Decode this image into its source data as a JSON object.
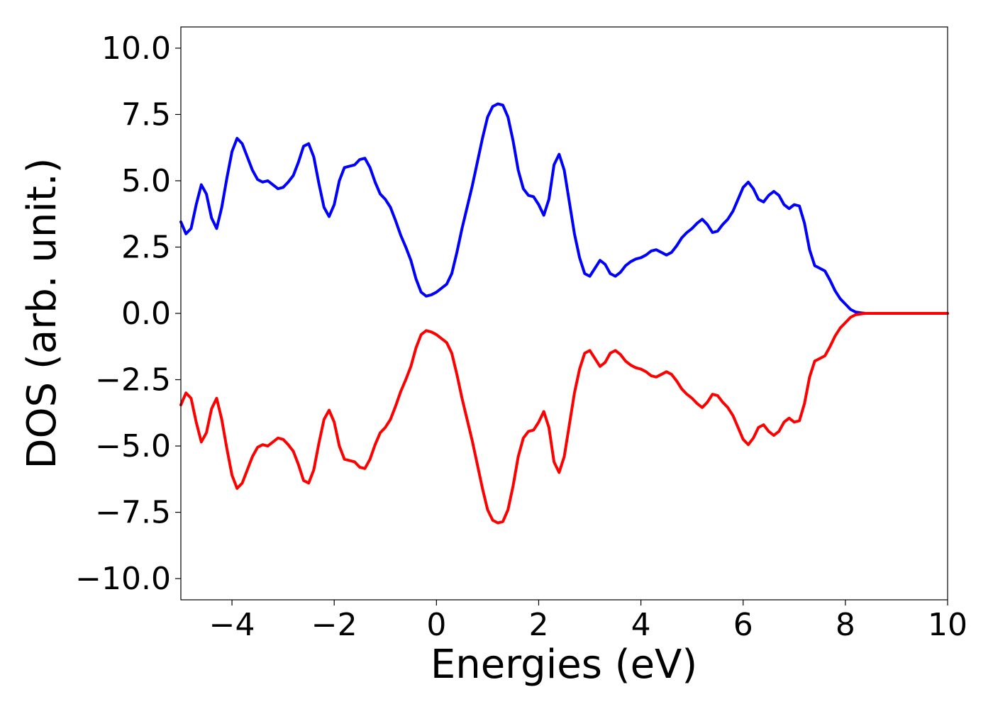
{
  "chart_data": {
    "type": "line",
    "title": "",
    "xlabel": "Energies (eV)",
    "ylabel": "DOS (arb. unit.)",
    "xlim": [
      -5,
      10
    ],
    "ylim": [
      -10.8,
      10.8
    ],
    "xticks": [
      -4,
      -2,
      0,
      2,
      4,
      6,
      8,
      10
    ],
    "xtick_labels": [
      "−4",
      "−2",
      "0",
      "2",
      "4",
      "6",
      "8",
      "10"
    ],
    "yticks": [
      10,
      7.5,
      5,
      2.5,
      0,
      -2.5,
      -5,
      -7.5,
      -10
    ],
    "ytick_labels": [
      "10.0",
      "7.5",
      "5.0",
      "2.5",
      "0.0",
      "−2.5",
      "−5.0",
      "−7.5",
      "−10.0"
    ],
    "grid": false,
    "legend": "none",
    "x": [
      -5.0,
      -4.9,
      -4.8,
      -4.7,
      -4.6,
      -4.5,
      -4.4,
      -4.3,
      -4.2,
      -4.1,
      -4.0,
      -3.9,
      -3.8,
      -3.7,
      -3.6,
      -3.5,
      -3.4,
      -3.3,
      -3.2,
      -3.1,
      -3.0,
      -2.9,
      -2.8,
      -2.7,
      -2.6,
      -2.5,
      -2.4,
      -2.3,
      -2.2,
      -2.1,
      -2.0,
      -1.9,
      -1.8,
      -1.7,
      -1.6,
      -1.5,
      -1.4,
      -1.3,
      -1.2,
      -1.1,
      -1.0,
      -0.9,
      -0.8,
      -0.7,
      -0.6,
      -0.5,
      -0.4,
      -0.3,
      -0.2,
      -0.1,
      0.0,
      0.1,
      0.2,
      0.3,
      0.4,
      0.5,
      0.6,
      0.7,
      0.8,
      0.9,
      1.0,
      1.1,
      1.2,
      1.3,
      1.4,
      1.5,
      1.6,
      1.7,
      1.8,
      1.9,
      2.0,
      2.1,
      2.2,
      2.3,
      2.4,
      2.5,
      2.6,
      2.7,
      2.8,
      2.9,
      3.0,
      3.1,
      3.2,
      3.3,
      3.4,
      3.5,
      3.6,
      3.7,
      3.8,
      3.9,
      4.0,
      4.1,
      4.2,
      4.3,
      4.4,
      4.5,
      4.6,
      4.7,
      4.8,
      4.9,
      5.0,
      5.1,
      5.2,
      5.3,
      5.4,
      5.5,
      5.6,
      5.7,
      5.8,
      5.9,
      6.0,
      6.1,
      6.2,
      6.3,
      6.4,
      6.5,
      6.6,
      6.7,
      6.8,
      6.9,
      7.0,
      7.1,
      7.2,
      7.3,
      7.4,
      7.5,
      7.6,
      7.7,
      7.8,
      7.9,
      8.0,
      8.1,
      8.2,
      8.3,
      8.4,
      8.5,
      8.6,
      8.7,
      8.8,
      8.9,
      9.0,
      9.1,
      9.2,
      9.3,
      9.4,
      9.5,
      9.6,
      9.7,
      9.8,
      9.9,
      10.0
    ],
    "series": [
      {
        "color": "#0000ff",
        "values": [
          3.45,
          3.0,
          3.2,
          4.1,
          4.85,
          4.5,
          3.6,
          3.2,
          4.0,
          5.1,
          6.1,
          6.6,
          6.4,
          5.9,
          5.4,
          5.05,
          4.95,
          5.0,
          4.85,
          4.7,
          4.75,
          4.95,
          5.2,
          5.7,
          6.3,
          6.4,
          5.9,
          4.9,
          4.0,
          3.65,
          4.1,
          5.0,
          5.5,
          5.55,
          5.6,
          5.8,
          5.85,
          5.5,
          4.95,
          4.5,
          4.3,
          4.0,
          3.5,
          2.95,
          2.5,
          2.0,
          1.3,
          0.8,
          0.65,
          0.7,
          0.8,
          0.95,
          1.1,
          1.5,
          2.3,
          3.2,
          4.0,
          4.8,
          5.7,
          6.6,
          7.4,
          7.8,
          7.9,
          7.85,
          7.4,
          6.5,
          5.4,
          4.7,
          4.45,
          4.4,
          4.1,
          3.7,
          4.3,
          5.6,
          6.0,
          5.4,
          4.2,
          3.0,
          2.1,
          1.5,
          1.4,
          1.7,
          2.0,
          1.85,
          1.5,
          1.4,
          1.55,
          1.8,
          1.95,
          2.05,
          2.1,
          2.2,
          2.35,
          2.4,
          2.3,
          2.2,
          2.3,
          2.55,
          2.85,
          3.05,
          3.2,
          3.4,
          3.55,
          3.35,
          3.05,
          3.1,
          3.35,
          3.55,
          3.85,
          4.3,
          4.75,
          4.95,
          4.7,
          4.3,
          4.2,
          4.45,
          4.6,
          4.45,
          4.1,
          3.95,
          4.1,
          4.05,
          3.4,
          2.4,
          1.8,
          1.7,
          1.6,
          1.25,
          0.85,
          0.55,
          0.35,
          0.15,
          0.05,
          0.02,
          0.0,
          0.0,
          0.0,
          0.0,
          0.0,
          0.0,
          0.0,
          0.0,
          0.0,
          0.0,
          0.0,
          0.0,
          0.0,
          0.0,
          0.0,
          0.0,
          0.0
        ]
      },
      {
        "color": "#ff0000",
        "values": [
          -3.45,
          -3.0,
          -3.2,
          -4.1,
          -4.85,
          -4.5,
          -3.6,
          -3.2,
          -4.0,
          -5.1,
          -6.1,
          -6.6,
          -6.4,
          -5.9,
          -5.4,
          -5.05,
          -4.95,
          -5.0,
          -4.85,
          -4.7,
          -4.75,
          -4.95,
          -5.2,
          -5.7,
          -6.3,
          -6.4,
          -5.9,
          -4.9,
          -4.0,
          -3.65,
          -4.1,
          -5.0,
          -5.5,
          -5.55,
          -5.6,
          -5.8,
          -5.85,
          -5.5,
          -4.95,
          -4.5,
          -4.3,
          -4.0,
          -3.5,
          -2.95,
          -2.5,
          -2.0,
          -1.3,
          -0.8,
          -0.65,
          -0.7,
          -0.8,
          -0.95,
          -1.1,
          -1.5,
          -2.3,
          -3.2,
          -4.0,
          -4.8,
          -5.7,
          -6.6,
          -7.4,
          -7.8,
          -7.9,
          -7.85,
          -7.4,
          -6.5,
          -5.4,
          -4.7,
          -4.45,
          -4.4,
          -4.1,
          -3.7,
          -4.3,
          -5.6,
          -6.0,
          -5.4,
          -4.2,
          -3.0,
          -2.1,
          -1.5,
          -1.4,
          -1.7,
          -2.0,
          -1.85,
          -1.5,
          -1.4,
          -1.55,
          -1.8,
          -1.95,
          -2.05,
          -2.1,
          -2.2,
          -2.35,
          -2.4,
          -2.3,
          -2.2,
          -2.3,
          -2.55,
          -2.85,
          -3.05,
          -3.2,
          -3.4,
          -3.55,
          -3.35,
          -3.05,
          -3.1,
          -3.35,
          -3.55,
          -3.85,
          -4.3,
          -4.75,
          -4.95,
          -4.7,
          -4.3,
          -4.2,
          -4.45,
          -4.6,
          -4.45,
          -4.1,
          -3.95,
          -4.1,
          -4.05,
          -3.4,
          -2.4,
          -1.8,
          -1.7,
          -1.6,
          -1.25,
          -0.85,
          -0.55,
          -0.35,
          -0.15,
          -0.05,
          -0.02,
          0.0,
          0.0,
          0.0,
          0.0,
          0.0,
          0.0,
          0.0,
          0.0,
          0.0,
          0.0,
          0.0,
          0.0,
          0.0,
          0.0,
          0.0,
          0.0,
          0.0
        ]
      }
    ]
  }
}
